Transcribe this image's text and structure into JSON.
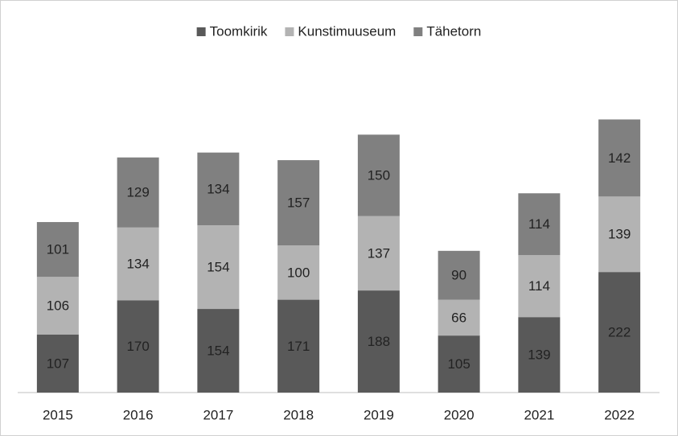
{
  "chart_data": {
    "type": "stacked_bar",
    "categories": [
      "2015",
      "2016",
      "2017",
      "2018",
      "2019",
      "2020",
      "2021",
      "2022"
    ],
    "series": [
      {
        "name": "Toomkirik",
        "color": "#595959",
        "values": [
          107,
          170,
          154,
          171,
          188,
          105,
          139,
          222
        ]
      },
      {
        "name": "Kunstimuuseum",
        "color": "#b3b3b3",
        "values": [
          106,
          134,
          154,
          100,
          137,
          66,
          114,
          139
        ]
      },
      {
        "name": "Tähetorn",
        "color": "#808080",
        "values": [
          101,
          129,
          134,
          157,
          150,
          90,
          114,
          142
        ]
      }
    ],
    "ylim": [
      0,
      600
    ],
    "legend": "top"
  }
}
